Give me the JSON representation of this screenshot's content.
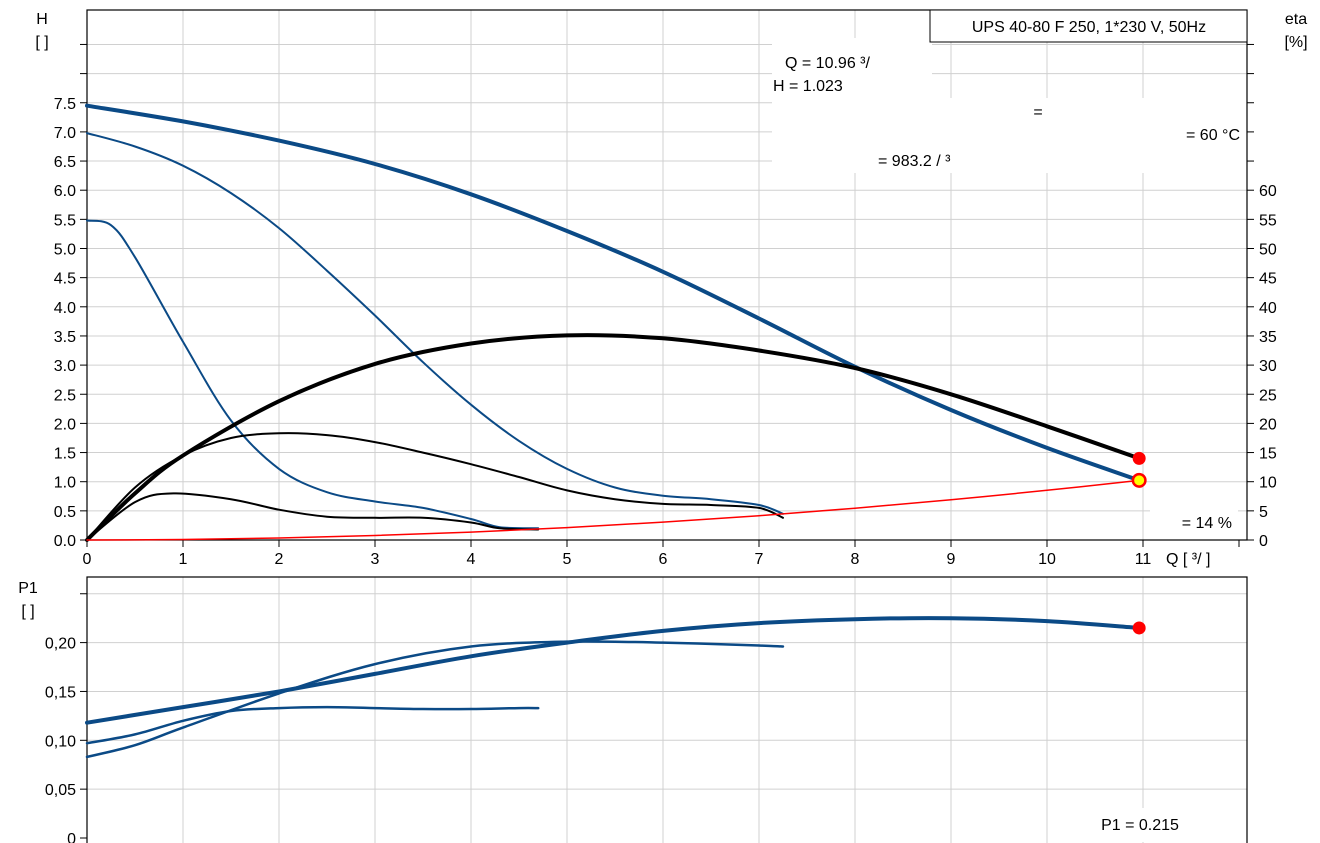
{
  "chart_data": [
    {
      "type": "line",
      "title": "UPS 40-80 F 250, 1*230 V, 50Hz",
      "left_axis_label": "H",
      "left_axis_unit": "[  ]",
      "right_axis_label": "eta",
      "right_axis_unit": "[%]",
      "x_axis_label": "Q [  ³/  ]",
      "xlim": [
        0,
        12
      ],
      "ylim": [
        0,
        8.5
      ],
      "y2lim": [
        0,
        85
      ],
      "x_ticks": [
        "0",
        "1",
        "2",
        "3",
        "4",
        "5",
        "6",
        "7",
        "8",
        "9",
        "10",
        "11"
      ],
      "y_ticks": [
        "0.0",
        "0.5",
        "1.0",
        "1.5",
        "2.0",
        "2.5",
        "3.0",
        "3.5",
        "4.0",
        "4.5",
        "5.0",
        "5.5",
        "6.0",
        "6.5",
        "7.0",
        "7.5"
      ],
      "y2_ticks": [
        "0",
        "5",
        "10",
        "15",
        "20",
        "25",
        "30",
        "35",
        "40",
        "45",
        "50",
        "55",
        "60"
      ],
      "grid": true,
      "info_box": {
        "q_line": "Q = 10.96   ³/",
        "h_line": "H = 1.023",
        "eq_line": "=",
        "temp_line": "= 60 °C",
        "rho_line": "= 983.2   /  ³",
        "eta_line": "= 14 %"
      },
      "colors": {
        "pump_curve": "#0b4a86",
        "eta_curve": "#000000",
        "system_curve": "#ff0000",
        "point": "#ff0000",
        "point_highlight": "#ffff00"
      },
      "series": [
        {
          "kind": "head",
          "width": 4,
          "x": [
            0,
            1,
            2,
            3,
            4,
            5,
            6,
            7,
            8,
            9,
            10,
            10.96
          ],
          "values": [
            7.45,
            7.18,
            6.85,
            6.45,
            5.93,
            5.3,
            4.6,
            3.8,
            2.97,
            2.23,
            1.58,
            1.023
          ]
        },
        {
          "kind": "head",
          "width": 2,
          "x": [
            0,
            0.5,
            1,
            1.5,
            2,
            2.5,
            3,
            3.5,
            4,
            4.5,
            5,
            5.5,
            6,
            6.5,
            7,
            7.25
          ],
          "values": [
            6.98,
            6.75,
            6.42,
            5.95,
            5.35,
            4.62,
            3.85,
            3.05,
            2.32,
            1.7,
            1.22,
            0.9,
            0.76,
            0.7,
            0.6,
            0.45
          ]
        },
        {
          "kind": "head",
          "width": 2,
          "x": [
            0,
            0.25,
            0.5,
            1,
            1.5,
            2,
            2.5,
            3,
            3.5,
            4,
            4.3,
            4.7
          ],
          "values": [
            5.48,
            5.4,
            4.85,
            3.4,
            2.05,
            1.22,
            0.82,
            0.66,
            0.55,
            0.36,
            0.22,
            0.2
          ]
        },
        {
          "kind": "eta",
          "width": 4,
          "x": [
            0,
            0.5,
            1,
            2,
            3,
            4,
            5,
            6,
            7,
            8,
            9,
            10,
            10.96
          ],
          "values": [
            0,
            8,
            14.5,
            23.8,
            30.2,
            33.7,
            35.1,
            34.6,
            32.5,
            29.5,
            25,
            19.5,
            14
          ]
        },
        {
          "kind": "eta",
          "width": 2,
          "x": [
            0,
            0.5,
            1,
            1.5,
            2,
            2.5,
            3,
            3.5,
            4,
            4.5,
            5,
            5.5,
            6,
            6.5,
            7,
            7.25
          ],
          "values": [
            0,
            9,
            14.5,
            17.5,
            18.3,
            18,
            16.8,
            15,
            13,
            10.8,
            8.5,
            7,
            6.2,
            6,
            5.5,
            3.8
          ]
        },
        {
          "kind": "eta",
          "width": 2,
          "x": [
            0,
            0.5,
            0.9,
            1.5,
            2,
            2.5,
            3,
            3.5,
            4,
            4.3,
            4.7
          ],
          "values": [
            0,
            6.5,
            8,
            7,
            5.2,
            4,
            3.8,
            3.8,
            3,
            2,
            1.8
          ]
        },
        {
          "kind": "system",
          "width": 1.5,
          "x": [
            0,
            1,
            2,
            3,
            4,
            5,
            6,
            7,
            8,
            9,
            10,
            10.96
          ],
          "values": [
            0,
            0.009,
            0.035,
            0.077,
            0.136,
            0.213,
            0.307,
            0.417,
            0.545,
            0.69,
            0.852,
            1.023
          ]
        }
      ],
      "points": [
        {
          "kind": "eta",
          "x": 10.96,
          "y": 14
        },
        {
          "kind": "head",
          "x": 10.96,
          "y": 1.023
        }
      ]
    },
    {
      "type": "line",
      "left_axis_label": "P1",
      "left_axis_unit": "[  ]",
      "xlim": [
        0,
        12
      ],
      "ylim": [
        0,
        0.25
      ],
      "y_ticks": [
        "0",
        "0,05",
        "0,10",
        "0,15",
        "0,20"
      ],
      "grid": true,
      "value_label": "P1 = 0.215",
      "series": [
        {
          "width": 4,
          "x": [
            0,
            1,
            2,
            3,
            4,
            5,
            6,
            7,
            8,
            9,
            10,
            10.96
          ],
          "values": [
            0.118,
            0.134,
            0.15,
            0.168,
            0.186,
            0.2,
            0.212,
            0.22,
            0.224,
            0.225,
            0.222,
            0.215
          ]
        },
        {
          "width": 2.5,
          "x": [
            0,
            0.5,
            1,
            2,
            3,
            4,
            5,
            6,
            7,
            7.25
          ],
          "values": [
            0.083,
            0.095,
            0.113,
            0.148,
            0.178,
            0.196,
            0.201,
            0.2,
            0.197,
            0.196
          ]
        },
        {
          "width": 2.5,
          "x": [
            0,
            0.5,
            1,
            1.5,
            2,
            2.5,
            3,
            3.5,
            4,
            4.5,
            4.7
          ],
          "values": [
            0.097,
            0.106,
            0.12,
            0.13,
            0.133,
            0.134,
            0.133,
            0.132,
            0.132,
            0.133,
            0.133
          ]
        }
      ],
      "points": [
        {
          "x": 10.96,
          "y": 0.215
        }
      ]
    }
  ]
}
